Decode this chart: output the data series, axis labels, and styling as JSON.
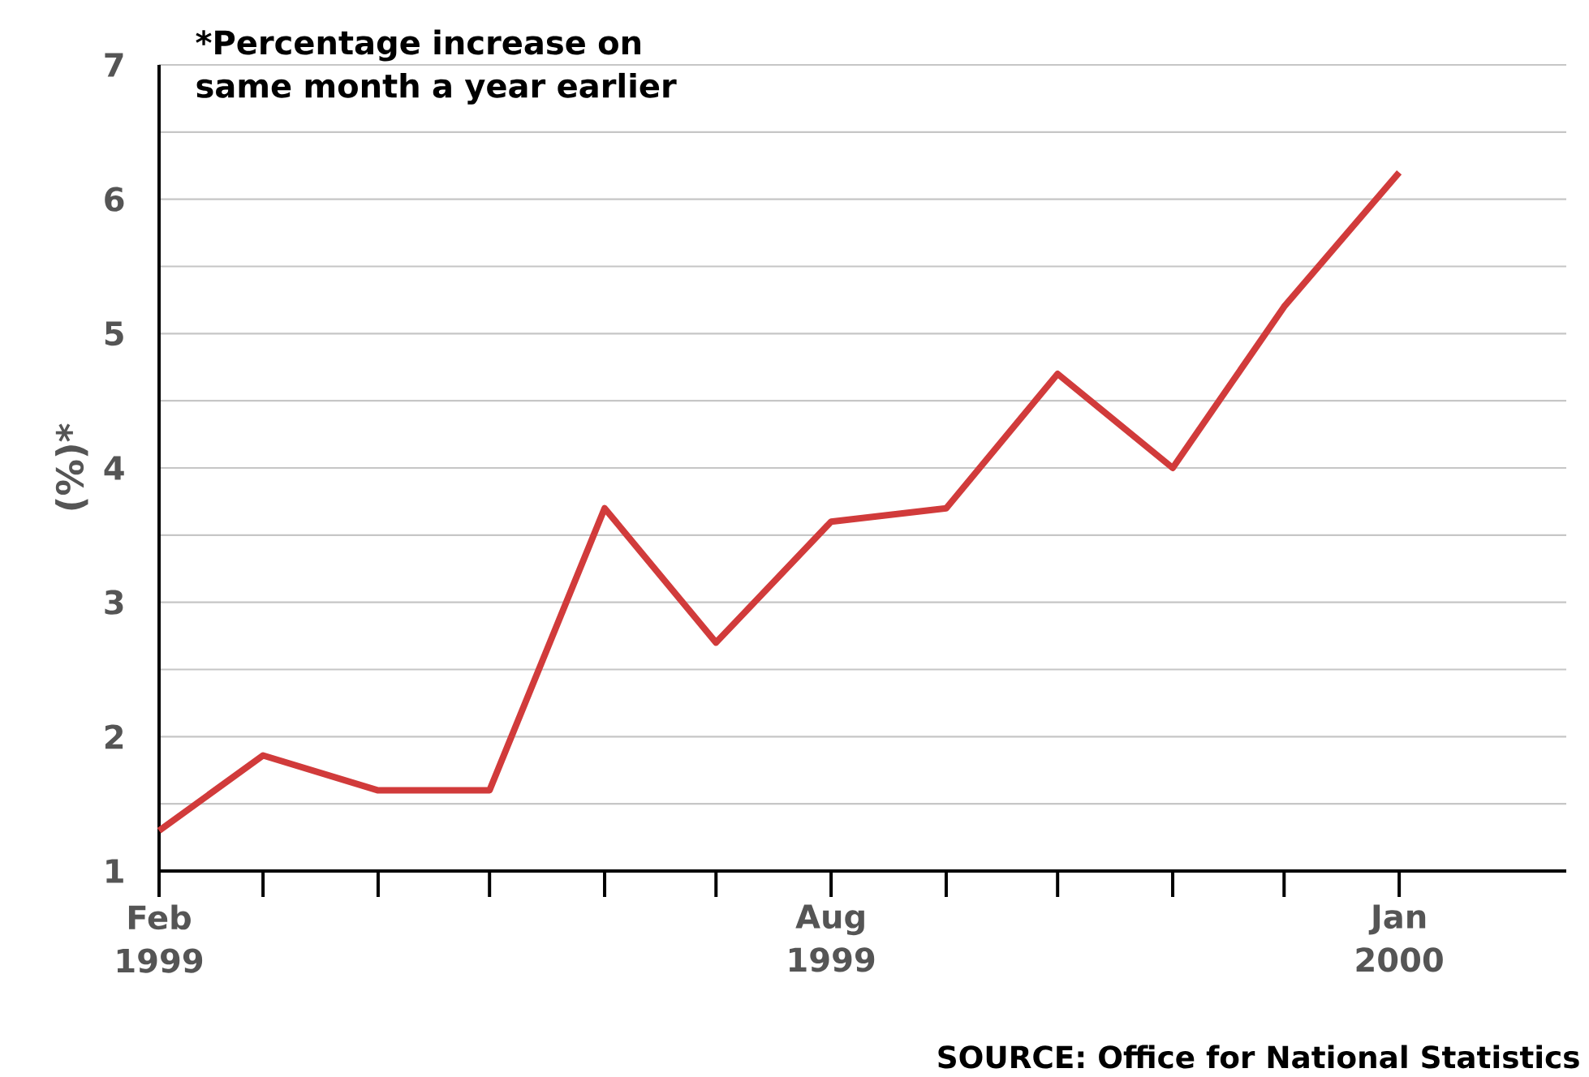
{
  "chart_data": {
    "type": "line",
    "ylabel": "(%)*",
    "annotations": [
      "*Percentage increase on same month a year earlier",
      "SOURCE: Office for National Statistics"
    ],
    "x": [
      "1999-02",
      "1999-03",
      "1999-04",
      "1999-05",
      "1999-06",
      "1999-07",
      "1999-08",
      "1999-09",
      "1999-10",
      "1999-11",
      "1999-12",
      "2000-01"
    ],
    "series": [
      {
        "color": "#d13b3b",
        "values": [
          1.3,
          1.86,
          1.6,
          1.6,
          3.7,
          2.7,
          3.6,
          3.7,
          4.7,
          4.0,
          5.2,
          6.2
        ]
      }
    ],
    "xlim": [
      "1999-02",
      "2000-02-15"
    ],
    "xticks": [
      {
        "value": "1999-02",
        "label": "Feb 1999"
      },
      {
        "value": "1999-03",
        "label": null
      },
      {
        "value": "1999-04",
        "label": null
      },
      {
        "value": "1999-05",
        "label": null
      },
      {
        "value": "1999-06",
        "label": null
      },
      {
        "value": "1999-07",
        "label": null
      },
      {
        "value": "1999-08",
        "label": "Aug 1999"
      },
      {
        "value": "1999-09",
        "label": null
      },
      {
        "value": "1999-10",
        "label": null
      },
      {
        "value": "1999-11",
        "label": null
      },
      {
        "value": "1999-12",
        "label": null
      },
      {
        "value": "2000-01",
        "label": "Jan 2000"
      }
    ],
    "ylim": [
      1,
      7
    ],
    "yticks": [
      1,
      {
        "value": 1.5,
        "label": null
      },
      2,
      {
        "value": 2.5,
        "label": null
      },
      3,
      {
        "value": 3.5,
        "label": null
      },
      4,
      {
        "value": 4.5,
        "label": null
      },
      5,
      {
        "value": 5.5,
        "label": null
      },
      6,
      {
        "value": 6.5,
        "label": null
      },
      7
    ],
    "grid": "y",
    "marker": "none",
    "line_style": "solid"
  }
}
